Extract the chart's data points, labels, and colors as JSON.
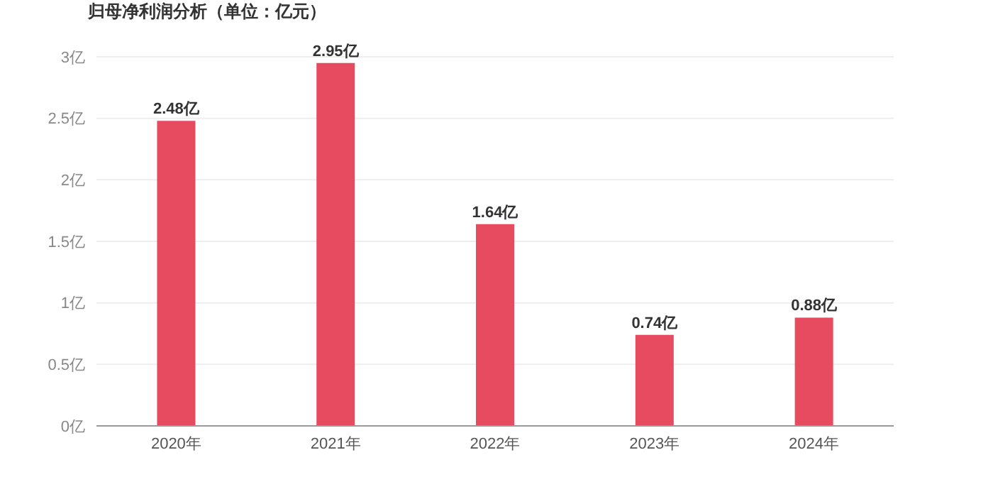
{
  "chart_data": {
    "type": "bar",
    "title": "归母净利润分析（单位：亿元）",
    "categories": [
      "2020年",
      "2021年",
      "2022年",
      "2023年",
      "2024年"
    ],
    "values": [
      2.48,
      2.95,
      1.64,
      0.74,
      0.88
    ],
    "value_labels": [
      "2.48亿",
      "2.95亿",
      "1.64亿",
      "0.74亿",
      "0.88亿"
    ],
    "color": "#e64b5f",
    "ylim": [
      0,
      3
    ],
    "yticks": [
      {
        "value": 0,
        "label": "0亿"
      },
      {
        "value": 0.5,
        "label": "0.5亿"
      },
      {
        "value": 1,
        "label": "1亿"
      },
      {
        "value": 1.5,
        "label": "1.5亿"
      },
      {
        "value": 2,
        "label": "2亿"
      },
      {
        "value": 2.5,
        "label": "2.5亿"
      },
      {
        "value": 3,
        "label": "3亿"
      }
    ],
    "grid": "y",
    "legend": false
  }
}
